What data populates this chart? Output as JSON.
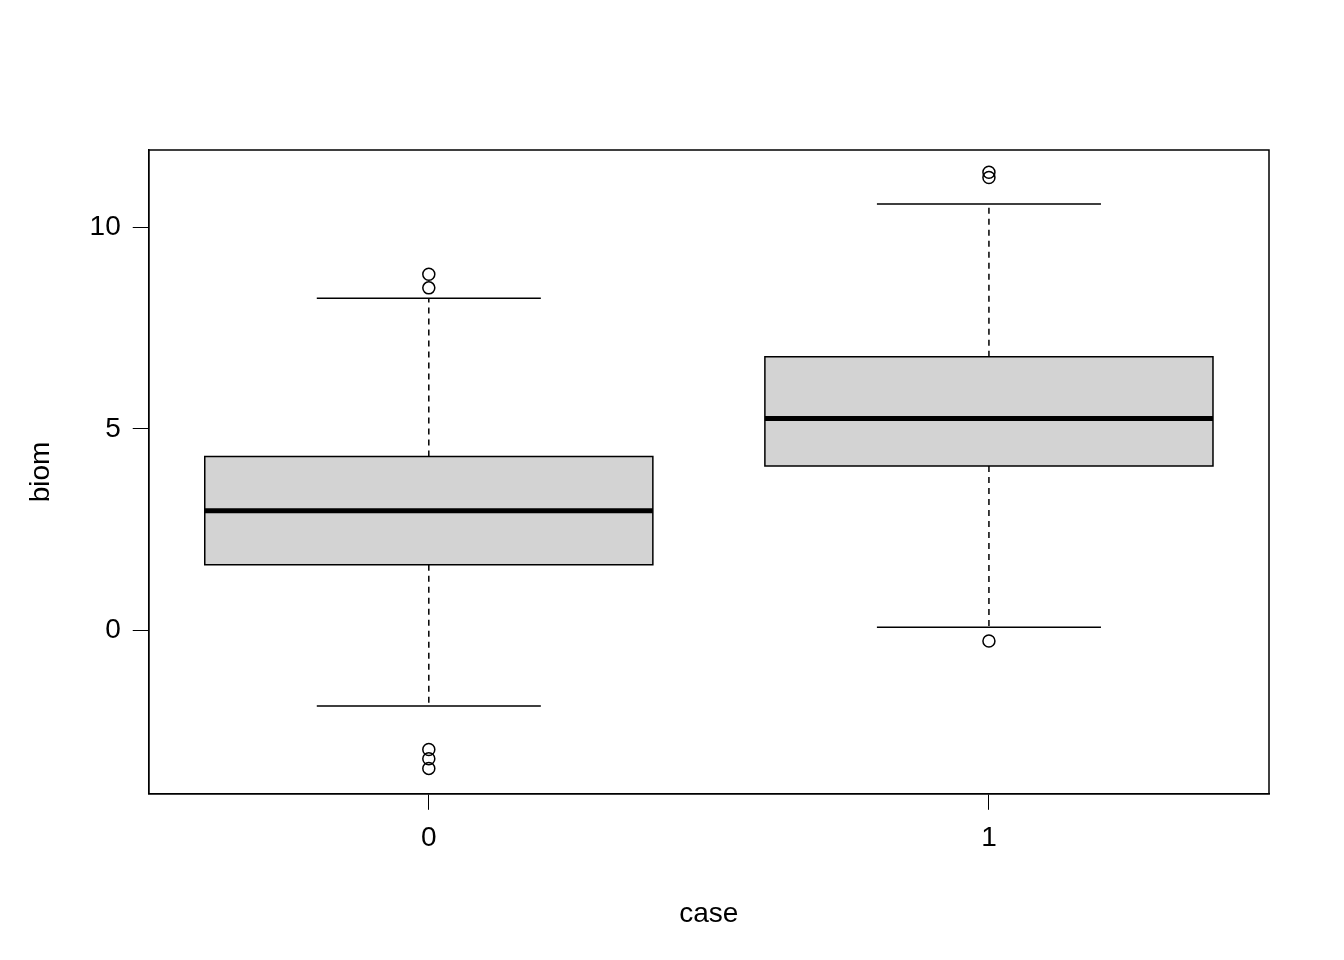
{
  "chart_data": {
    "type": "box",
    "xlabel": "case",
    "ylabel": "biom",
    "categories": [
      "0",
      "1"
    ],
    "color": "#d3d3d3",
    "boxes": [
      {
        "low": -1.87,
        "q1": 1.63,
        "median": 2.97,
        "q3": 4.32,
        "high": 8.24,
        "outliers": [
          8.84,
          8.5,
          -2.95,
          -3.18,
          -3.42
        ]
      },
      {
        "low": 0.08,
        "q1": 4.08,
        "median": 5.26,
        "q3": 6.79,
        "high": 10.58,
        "outliers": [
          11.37,
          11.24,
          -0.26
        ]
      }
    ],
    "ylim": [
      -4.05,
      11.92
    ],
    "yticks": [
      0,
      5,
      10
    ],
    "grid": false,
    "legend": false
  }
}
